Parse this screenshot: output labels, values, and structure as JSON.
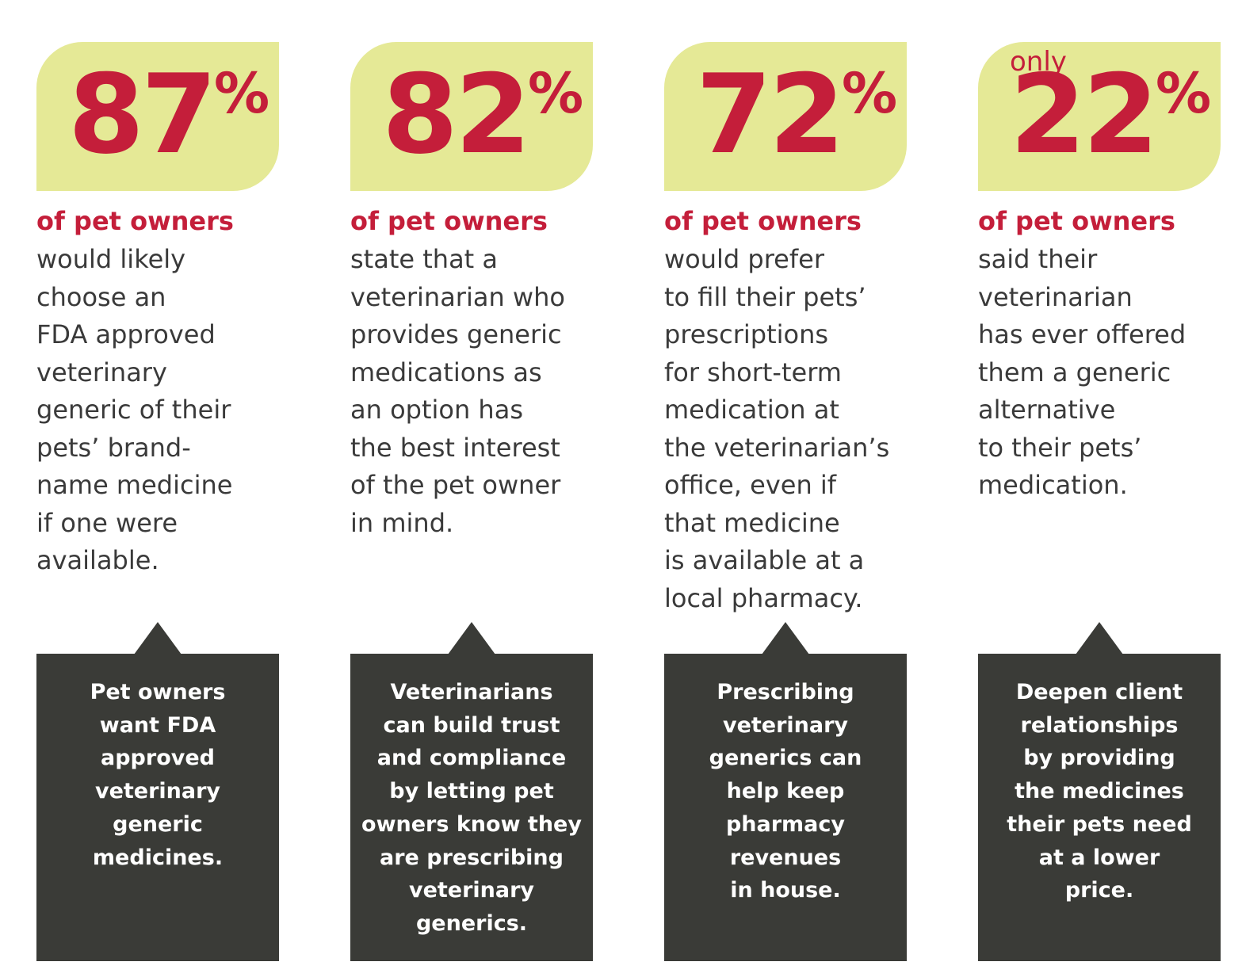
{
  "stats": [
    {
      "qualifier": "",
      "number": "87",
      "percent_sign": "%",
      "subject": "of pet owners",
      "description_lines": [
        "would likely",
        "choose an",
        "FDA approved",
        "veterinary",
        "generic of their",
        "pets’ brand-",
        "name medicine",
        "if one were",
        "available."
      ],
      "callout_lines": [
        "Pet owners",
        "want FDA",
        "approved",
        "veterinary",
        "generic",
        "medicines."
      ]
    },
    {
      "qualifier": "",
      "number": "82",
      "percent_sign": "%",
      "subject": "of pet owners",
      "description_lines": [
        "state that a",
        "veterinarian who",
        "provides generic",
        "medications as",
        "an option has",
        "the best interest",
        "of the pet owner",
        "in mind."
      ],
      "callout_lines": [
        "Veterinarians",
        "can build trust",
        "and compliance",
        "by letting pet",
        "owners know they",
        "are prescribing",
        "veterinary",
        "generics."
      ]
    },
    {
      "qualifier": "",
      "number": "72",
      "percent_sign": "%",
      "subject": "of pet owners",
      "description_lines": [
        "would prefer",
        "to fill their pets’",
        "prescriptions",
        "for short-term",
        "medication at",
        "the veterinarian’s",
        "office, even if",
        "that medicine",
        "is available at a",
        "local pharmacy."
      ],
      "callout_lines": [
        "Prescribing",
        "veterinary",
        "generics can",
        "help keep",
        "pharmacy",
        "revenues",
        "in house."
      ]
    },
    {
      "qualifier": "only",
      "number": "22",
      "percent_sign": "%",
      "subject": "of pet owners",
      "description_lines": [
        "said their",
        "veterinarian",
        "has ever offered",
        "them a generic",
        "alternative",
        "to their pets’",
        "medication."
      ],
      "callout_lines": [
        "Deepen client",
        "relationships",
        "by providing",
        "the medicines",
        "their pets need",
        "at a lower",
        "price."
      ]
    }
  ],
  "colors": {
    "stat_box_bg": "#e5e996",
    "accent_red": "#c41e3a",
    "body_text": "#3a3a3a",
    "callout_bg": "#3a3b37",
    "callout_text": "#ffffff"
  }
}
